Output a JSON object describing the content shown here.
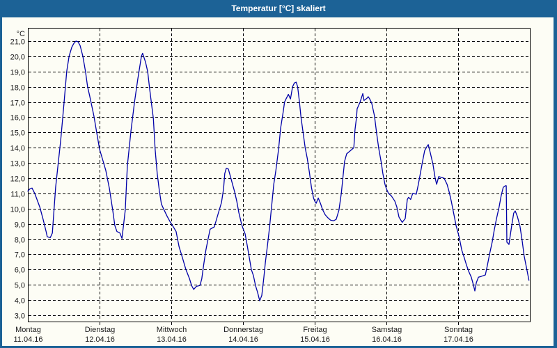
{
  "window": {
    "title": "Temperatur [°C] skaliert",
    "colors": {
      "title_bar": "#1C6296",
      "border": "#1C6296",
      "background": "#FDFDF5",
      "grid": "#000000",
      "text": "#1A1A1A",
      "title_text": "#FFFFFF",
      "line": "#0000A8"
    }
  },
  "chart_data": {
    "type": "line",
    "title": "Temperatur [°C] skaliert",
    "ylabel": "°C",
    "xlabel": "",
    "grid": {
      "horizontal": "dashed",
      "vertical": "dashed",
      "legend_position": "none"
    },
    "y_axis": {
      "min": 3.0,
      "max": 21.0,
      "step": 1.0,
      "unit_label": "°C",
      "tick_labels": [
        "21,0",
        "20,0",
        "19,0",
        "18,0",
        "17,0",
        "16,0",
        "15,0",
        "14,0",
        "13,0",
        "12,0",
        "11,0",
        "10,0",
        "9,0",
        "8,0",
        "7,0",
        "6,0",
        "5,0",
        "4,0",
        "3,0"
      ]
    },
    "x_axis": {
      "total_hours": 168,
      "days": [
        {
          "name": "Montag",
          "date": "11.04.16"
        },
        {
          "name": "Dienstag",
          "date": "12.04.16"
        },
        {
          "name": "Mittwoch",
          "date": "13.04.16"
        },
        {
          "name": "Donnerstag",
          "date": "14.04.16"
        },
        {
          "name": "Freitag",
          "date": "15.04.16"
        },
        {
          "name": "Samstag",
          "date": "16.04.16"
        },
        {
          "name": "Sonntag",
          "date": "17.04.16"
        }
      ]
    },
    "series": [
      {
        "name": "Temperatur [°C]",
        "color": "#0000A8",
        "points_hours_temp": [
          [
            0,
            11.15
          ],
          [
            0.7,
            11.3
          ],
          [
            1.4,
            11.35
          ],
          [
            2.3,
            11.0
          ],
          [
            4.0,
            10.1
          ],
          [
            5.1,
            9.3
          ],
          [
            6.1,
            8.5
          ],
          [
            6.5,
            8.15
          ],
          [
            7.5,
            8.1
          ],
          [
            8.2,
            8.4
          ],
          [
            9.3,
            11.4
          ],
          [
            11.0,
            14.5
          ],
          [
            12.1,
            16.9
          ],
          [
            13.0,
            19.0
          ],
          [
            13.8,
            20.0
          ],
          [
            14.7,
            20.6
          ],
          [
            15.4,
            20.85
          ],
          [
            16.1,
            21.0
          ],
          [
            16.8,
            20.95
          ],
          [
            17.5,
            20.7
          ],
          [
            18.4,
            20.0
          ],
          [
            19.3,
            19.0
          ],
          [
            20.0,
            18.0
          ],
          [
            20.7,
            17.4
          ],
          [
            22.1,
            16.1
          ],
          [
            23.3,
            14.7
          ],
          [
            24.0,
            13.9
          ],
          [
            24.9,
            13.3
          ],
          [
            26.1,
            12.5
          ],
          [
            27.3,
            11.3
          ],
          [
            28.4,
            9.9
          ],
          [
            29.1,
            8.9
          ],
          [
            29.8,
            8.5
          ],
          [
            30.8,
            8.4
          ],
          [
            31.5,
            8.05
          ],
          [
            32.6,
            9.9
          ],
          [
            33.3,
            12.8
          ],
          [
            34.5,
            15.1
          ],
          [
            35.7,
            17.0
          ],
          [
            36.8,
            18.5
          ],
          [
            38.0,
            20.0
          ],
          [
            38.4,
            20.2
          ],
          [
            39.4,
            19.6
          ],
          [
            40.1,
            19.0
          ],
          [
            40.8,
            17.8
          ],
          [
            42.0,
            15.9
          ],
          [
            42.6,
            13.9
          ],
          [
            43.3,
            12.3
          ],
          [
            44.0,
            11.2
          ],
          [
            44.7,
            10.3
          ],
          [
            45.4,
            10.0
          ],
          [
            46.6,
            9.5
          ],
          [
            48.0,
            9.0
          ],
          [
            48.7,
            8.8
          ],
          [
            49.6,
            8.5
          ],
          [
            50.6,
            7.5
          ],
          [
            51.7,
            6.8
          ],
          [
            52.9,
            6.0
          ],
          [
            54.1,
            5.4
          ],
          [
            54.8,
            4.95
          ],
          [
            55.5,
            4.7
          ],
          [
            56.4,
            4.9
          ],
          [
            57.6,
            4.95
          ],
          [
            58.2,
            5.4
          ],
          [
            58.9,
            6.4
          ],
          [
            59.6,
            7.3
          ],
          [
            60.3,
            8.0
          ],
          [
            61.0,
            8.65
          ],
          [
            62.4,
            8.8
          ],
          [
            63.6,
            9.6
          ],
          [
            64.8,
            10.4
          ],
          [
            65.5,
            11.3
          ],
          [
            65.9,
            12.3
          ],
          [
            66.4,
            12.65
          ],
          [
            67.1,
            12.6
          ],
          [
            67.8,
            12.1
          ],
          [
            68.5,
            11.6
          ],
          [
            69.2,
            11.1
          ],
          [
            69.9,
            10.5
          ],
          [
            70.6,
            9.75
          ],
          [
            71.5,
            9.0
          ],
          [
            72.0,
            8.7
          ],
          [
            72.7,
            8.35
          ],
          [
            73.4,
            7.6
          ],
          [
            74.1,
            6.8
          ],
          [
            74.8,
            6.0
          ],
          [
            75.5,
            5.6
          ],
          [
            76.2,
            4.95
          ],
          [
            76.9,
            4.5
          ],
          [
            77.6,
            3.95
          ],
          [
            78.3,
            4.3
          ],
          [
            79.0,
            5.5
          ],
          [
            79.5,
            6.5
          ],
          [
            80.2,
            7.6
          ],
          [
            80.9,
            8.8
          ],
          [
            81.6,
            10.2
          ],
          [
            82.3,
            11.6
          ],
          [
            83.0,
            12.5
          ],
          [
            83.9,
            13.9
          ],
          [
            84.6,
            15.3
          ],
          [
            85.5,
            16.4
          ],
          [
            85.9,
            17.0
          ],
          [
            86.4,
            17.2
          ],
          [
            87.2,
            17.5
          ],
          [
            87.9,
            17.2
          ],
          [
            88.6,
            18.0
          ],
          [
            89.2,
            18.25
          ],
          [
            89.8,
            18.3
          ],
          [
            90.3,
            18.0
          ],
          [
            90.9,
            17.0
          ],
          [
            91.4,
            16.0
          ],
          [
            92.1,
            15.0
          ],
          [
            92.8,
            14.0
          ],
          [
            93.5,
            13.3
          ],
          [
            94.2,
            12.4
          ],
          [
            94.9,
            11.4
          ],
          [
            95.6,
            10.7
          ],
          [
            96.0,
            10.5
          ],
          [
            96.5,
            10.35
          ],
          [
            97.2,
            10.7
          ],
          [
            97.9,
            10.35
          ],
          [
            98.6,
            9.95
          ],
          [
            99.5,
            9.6
          ],
          [
            100.4,
            9.4
          ],
          [
            101.3,
            9.25
          ],
          [
            102.3,
            9.2
          ],
          [
            103.2,
            9.3
          ],
          [
            104.1,
            9.9
          ],
          [
            104.9,
            11.0
          ],
          [
            105.6,
            12.35
          ],
          [
            106.0,
            13.1
          ],
          [
            106.7,
            13.6
          ],
          [
            107.9,
            13.8
          ],
          [
            109.1,
            14.0
          ],
          [
            109.5,
            15.2
          ],
          [
            110.0,
            16.0
          ],
          [
            110.2,
            16.55
          ],
          [
            111.2,
            17.0
          ],
          [
            112.1,
            17.55
          ],
          [
            112.5,
            17.1
          ],
          [
            113.5,
            17.25
          ],
          [
            113.9,
            17.35
          ],
          [
            114.4,
            17.2
          ],
          [
            115.1,
            16.9
          ],
          [
            116.0,
            16.1
          ],
          [
            116.7,
            15.0
          ],
          [
            117.4,
            14.0
          ],
          [
            118.3,
            13.0
          ],
          [
            118.8,
            12.3
          ],
          [
            119.5,
            11.6
          ],
          [
            120.0,
            11.3
          ],
          [
            120.7,
            11.0
          ],
          [
            121.6,
            10.85
          ],
          [
            122.8,
            10.5
          ],
          [
            123.5,
            10.1
          ],
          [
            124.2,
            9.45
          ],
          [
            125.3,
            9.1
          ],
          [
            126.3,
            9.35
          ],
          [
            127.0,
            10.6
          ],
          [
            127.4,
            10.75
          ],
          [
            128.1,
            10.6
          ],
          [
            128.8,
            11.0
          ],
          [
            130.0,
            10.95
          ],
          [
            130.7,
            11.6
          ],
          [
            131.4,
            12.35
          ],
          [
            132.1,
            13.1
          ],
          [
            132.8,
            13.8
          ],
          [
            133.5,
            14.05
          ],
          [
            134.0,
            14.2
          ],
          [
            134.7,
            13.65
          ],
          [
            135.6,
            12.9
          ],
          [
            136.3,
            12.0
          ],
          [
            136.8,
            11.6
          ],
          [
            137.5,
            12.1
          ],
          [
            138.4,
            12.05
          ],
          [
            139.3,
            12.0
          ],
          [
            140.3,
            11.6
          ],
          [
            141.0,
            11.1
          ],
          [
            141.7,
            10.5
          ],
          [
            142.6,
            9.6
          ],
          [
            143.3,
            8.9
          ],
          [
            144.0,
            8.4
          ],
          [
            144.5,
            8.0
          ],
          [
            145.2,
            7.3
          ],
          [
            146.1,
            6.75
          ],
          [
            146.8,
            6.3
          ],
          [
            147.5,
            5.9
          ],
          [
            148.4,
            5.5
          ],
          [
            149.1,
            5.0
          ],
          [
            149.6,
            4.6
          ],
          [
            150.1,
            5.15
          ],
          [
            150.8,
            5.5
          ],
          [
            151.7,
            5.55
          ],
          [
            153.1,
            5.65
          ],
          [
            153.8,
            6.3
          ],
          [
            154.5,
            7.0
          ],
          [
            155.4,
            7.8
          ],
          [
            156.1,
            8.6
          ],
          [
            156.8,
            9.3
          ],
          [
            157.7,
            10.1
          ],
          [
            158.4,
            10.85
          ],
          [
            159.1,
            11.4
          ],
          [
            159.8,
            11.5
          ],
          [
            160.1,
            11.5
          ],
          [
            160.3,
            7.8
          ],
          [
            161.0,
            7.65
          ],
          [
            161.9,
            8.85
          ],
          [
            162.6,
            9.7
          ],
          [
            163.1,
            9.85
          ],
          [
            163.8,
            9.5
          ],
          [
            164.7,
            8.85
          ],
          [
            165.4,
            7.95
          ],
          [
            166.1,
            6.9
          ],
          [
            167.0,
            6.0
          ],
          [
            167.7,
            5.3
          ]
        ]
      }
    ]
  }
}
